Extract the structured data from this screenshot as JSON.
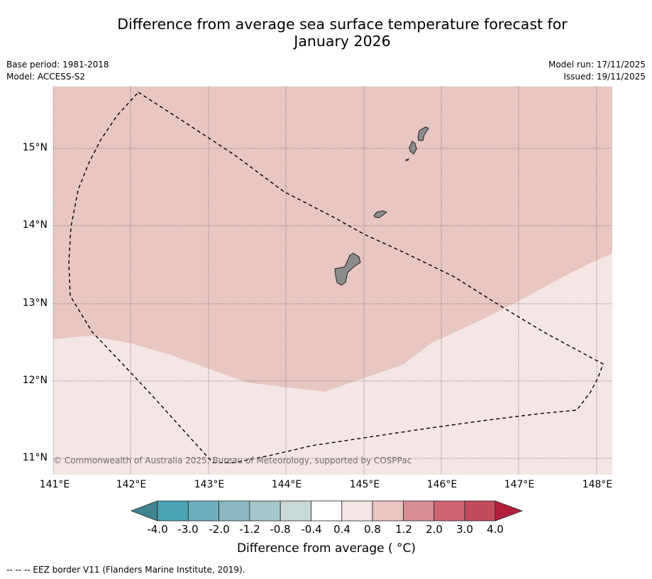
{
  "title_line1": "Difference from average sea surface temperature forecast for",
  "title_line2": "January 2026",
  "base_period": "Base period: 1981-2018",
  "model": "Model: ACCESS-S2",
  "model_run": "Model run: 17/11/2025",
  "issued": "Issued: 19/11/2025",
  "lat_labels": [
    "15°N",
    "14°N",
    "13°N",
    "12°N",
    "11°N"
  ],
  "lon_labels": [
    "141°E",
    "142°E",
    "143°E",
    "144°E",
    "145°E",
    "146°E",
    "147°E",
    "148°E"
  ],
  "copyright": "© Commonwealth of Australia 2025, Bureau of Meteorology, supported by COSPPac",
  "colorbar": {
    "ticks": [
      "-4.0",
      "-3.0",
      "-2.0",
      "-1.2",
      "-0.8",
      "-0.4",
      "0.4",
      "0.8",
      "1.2",
      "2.0",
      "3.0",
      "4.0"
    ],
    "colors": [
      "#4aa4b3",
      "#6caebc",
      "#8bb7c3",
      "#a8c6cb",
      "#c9d8d9",
      "#ffffff",
      "#f4e6e4",
      "#e8c6c1",
      "#d98d95",
      "#cf6674",
      "#c24b5b"
    ],
    "under_color": "#3e8590",
    "over_color": "#b3203c",
    "label": "Difference from average ( °C)"
  },
  "map_colors": {
    "band_0_8_1_2": "#e8c6c1",
    "band_0_4_0_8": "#f4e6e4",
    "land": "#8c8c8c"
  },
  "legend_text": "--  --  -- EEZ border V11 (Flanders Marine Institute, 2019)."
}
